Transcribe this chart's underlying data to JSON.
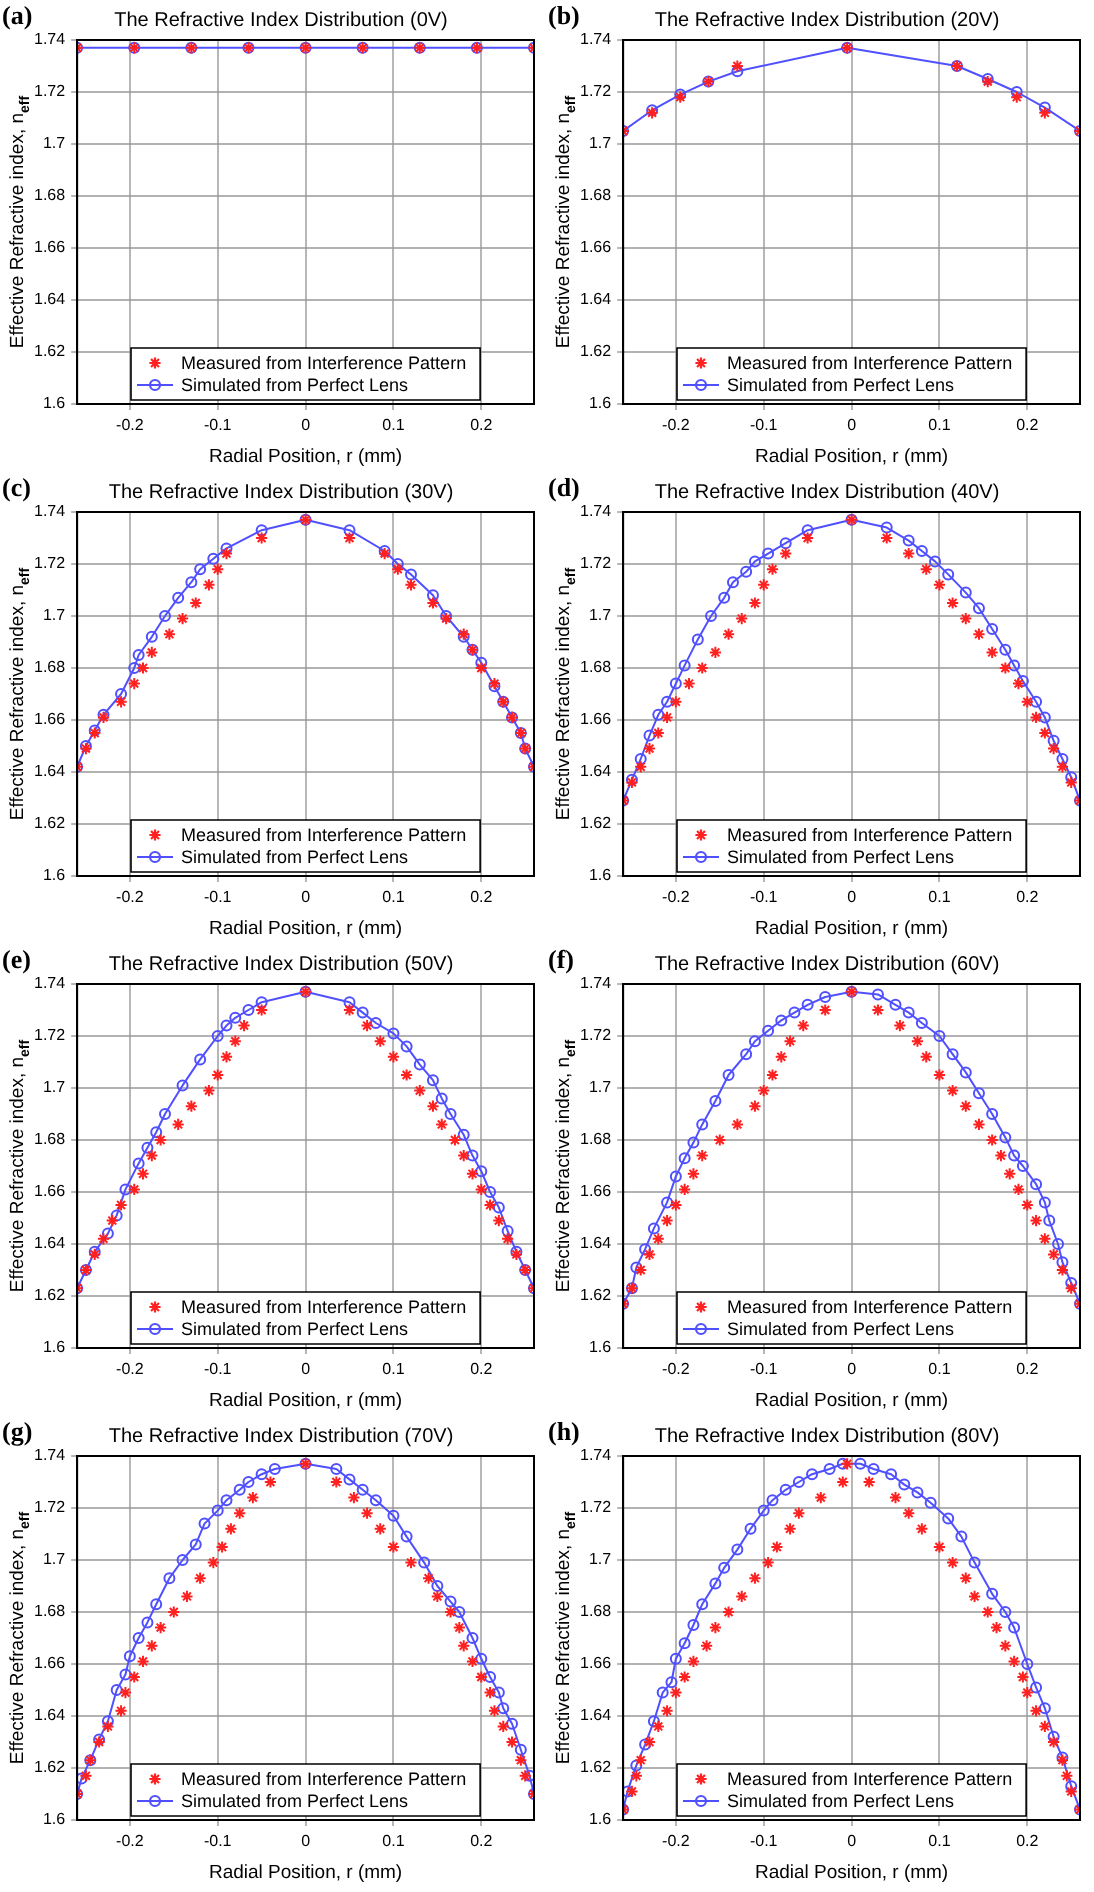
{
  "chart_data": [
    {
      "type": "line",
      "title": "The Refractive Index Distribution (0V)",
      "xlabel": "Radial Position, r (mm)",
      "ylabel": "Effective Refractive index, n$_{eff}$",
      "annotations": [
        "(a)"
      ],
      "xlim": [
        -0.26,
        0.26
      ],
      "xticks": [
        -0.2,
        -0.1,
        0,
        0.1,
        0.2
      ],
      "ylim": [
        1.6,
        1.74
      ],
      "yticks": [
        1.6,
        1.62,
        1.64,
        1.66,
        1.68,
        1.7,
        1.72,
        1.74
      ],
      "grid": true,
      "legend": "bottom",
      "series": [
        {
          "name": "Measured from Interference Pattern",
          "color": "#ff2020",
          "type": "scatter",
          "marker": "cross",
          "x": [
            -0.26,
            -0.195,
            -0.13,
            -0.065,
            0,
            0.065,
            0.13,
            0.195,
            0.26
          ],
          "values": [
            1.737,
            1.737,
            1.737,
            1.737,
            1.737,
            1.737,
            1.737,
            1.737,
            1.737
          ]
        },
        {
          "name": "Simulated from Perfect Lens",
          "color": "#5050ff",
          "type": "line",
          "marker": "circle",
          "line_style": "solid",
          "x": [
            -0.26,
            -0.195,
            -0.13,
            -0.065,
            0,
            0.065,
            0.13,
            0.195,
            0.26
          ],
          "values": [
            1.737,
            1.737,
            1.737,
            1.737,
            1.737,
            1.737,
            1.737,
            1.737,
            1.737
          ]
        }
      ]
    },
    {
      "type": "line",
      "title": "The Refractive Index Distribution (20V)",
      "xlabel": "Radial Position, r (mm)",
      "ylabel": "Effective Refractive index, n$_{eff}$",
      "annotations": [
        "(b)"
      ],
      "xlim": [
        -0.26,
        0.26
      ],
      "xticks": [
        -0.2,
        -0.1,
        0,
        0.1,
        0.2
      ],
      "ylim": [
        1.6,
        1.74
      ],
      "yticks": [
        1.6,
        1.62,
        1.64,
        1.66,
        1.68,
        1.7,
        1.72,
        1.74
      ],
      "grid": true,
      "legend": "bottom",
      "series": [
        {
          "name": "Measured from Interference Pattern",
          "color": "#ff2020",
          "type": "scatter",
          "marker": "cross",
          "x": [
            -0.26,
            -0.227,
            -0.195,
            -0.163,
            -0.13,
            -0.005,
            0.12,
            0.155,
            0.188,
            0.22,
            0.26
          ],
          "values": [
            1.705,
            1.712,
            1.718,
            1.724,
            1.73,
            1.737,
            1.73,
            1.724,
            1.718,
            1.712,
            1.705
          ]
        },
        {
          "name": "Simulated from Perfect Lens",
          "color": "#5050ff",
          "type": "line",
          "marker": "circle",
          "line_style": "solid",
          "x": [
            -0.26,
            -0.227,
            -0.195,
            -0.163,
            -0.13,
            -0.005,
            0.12,
            0.155,
            0.188,
            0.22,
            0.26
          ],
          "values": [
            1.705,
            1.713,
            1.719,
            1.724,
            1.728,
            1.737,
            1.73,
            1.725,
            1.72,
            1.714,
            1.705
          ]
        }
      ]
    },
    {
      "type": "line",
      "title": "The Refractive Index Distribution (30V)",
      "xlabel": "Radial Position, r (mm)",
      "ylabel": "Effective Refractive index, n$_{eff}$",
      "annotations": [
        "(c)"
      ],
      "xlim": [
        -0.26,
        0.26
      ],
      "xticks": [
        -0.2,
        -0.1,
        0,
        0.1,
        0.2
      ],
      "ylim": [
        1.6,
        1.74
      ],
      "yticks": [
        1.6,
        1.62,
        1.64,
        1.66,
        1.68,
        1.7,
        1.72,
        1.74
      ],
      "grid": true,
      "legend": "bottom",
      "series": [
        {
          "name": "Measured from Interference Pattern",
          "color": "#ff2020",
          "type": "scatter",
          "marker": "cross",
          "x": [
            -0.26,
            -0.25,
            -0.24,
            -0.23,
            -0.21,
            -0.195,
            -0.185,
            -0.175,
            -0.155,
            -0.14,
            -0.125,
            -0.11,
            -0.1,
            -0.09,
            -0.05,
            0,
            0.05,
            0.09,
            0.105,
            0.12,
            0.145,
            0.16,
            0.18,
            0.19,
            0.2,
            0.215,
            0.225,
            0.235,
            0.245,
            0.25,
            0.26
          ],
          "values": [
            1.642,
            1.649,
            1.655,
            1.661,
            1.667,
            1.674,
            1.68,
            1.686,
            1.693,
            1.699,
            1.705,
            1.712,
            1.718,
            1.724,
            1.73,
            1.737,
            1.73,
            1.724,
            1.718,
            1.712,
            1.705,
            1.699,
            1.693,
            1.687,
            1.68,
            1.674,
            1.667,
            1.661,
            1.655,
            1.649,
            1.642
          ]
        },
        {
          "name": "Simulated from Perfect Lens",
          "color": "#5050ff",
          "type": "line",
          "marker": "circle",
          "line_style": "solid",
          "x": [
            -0.26,
            -0.25,
            -0.24,
            -0.23,
            -0.21,
            -0.195,
            -0.19,
            -0.175,
            -0.16,
            -0.145,
            -0.13,
            -0.12,
            -0.105,
            -0.09,
            -0.05,
            0,
            0.05,
            0.09,
            0.105,
            0.12,
            0.145,
            0.16,
            0.18,
            0.19,
            0.2,
            0.215,
            0.225,
            0.235,
            0.245,
            0.25,
            0.26
          ],
          "values": [
            1.642,
            1.65,
            1.656,
            1.662,
            1.67,
            1.68,
            1.685,
            1.692,
            1.7,
            1.707,
            1.713,
            1.718,
            1.722,
            1.726,
            1.733,
            1.737,
            1.733,
            1.725,
            1.72,
            1.716,
            1.708,
            1.7,
            1.692,
            1.687,
            1.682,
            1.673,
            1.667,
            1.661,
            1.655,
            1.649,
            1.642
          ]
        }
      ]
    },
    {
      "type": "line",
      "title": "The Refractive Index Distribution (40V)",
      "xlabel": "Radial Position, r (mm)",
      "ylabel": "Effective Refractive index, n$_{eff}$",
      "annotations": [
        "(d)"
      ],
      "xlim": [
        -0.26,
        0.26
      ],
      "xticks": [
        -0.2,
        -0.1,
        0,
        0.1,
        0.2
      ],
      "ylim": [
        1.6,
        1.74
      ],
      "yticks": [
        1.6,
        1.62,
        1.64,
        1.66,
        1.68,
        1.7,
        1.72,
        1.74
      ],
      "grid": true,
      "legend": "bottom",
      "series": [
        {
          "name": "Measured from Interference Pattern",
          "color": "#ff2020",
          "type": "scatter",
          "marker": "cross",
          "x": [
            -0.26,
            -0.25,
            -0.24,
            -0.23,
            -0.22,
            -0.21,
            -0.2,
            -0.185,
            -0.17,
            -0.155,
            -0.14,
            -0.125,
            -0.11,
            -0.1,
            -0.09,
            -0.075,
            -0.05,
            0,
            0.04,
            0.065,
            0.085,
            0.1,
            0.115,
            0.13,
            0.145,
            0.16,
            0.175,
            0.19,
            0.2,
            0.21,
            0.22,
            0.23,
            0.24,
            0.25,
            0.26
          ],
          "values": [
            1.629,
            1.636,
            1.642,
            1.649,
            1.655,
            1.661,
            1.667,
            1.674,
            1.68,
            1.686,
            1.693,
            1.699,
            1.705,
            1.712,
            1.718,
            1.724,
            1.73,
            1.737,
            1.73,
            1.724,
            1.718,
            1.712,
            1.705,
            1.699,
            1.693,
            1.686,
            1.68,
            1.674,
            1.667,
            1.661,
            1.655,
            1.649,
            1.642,
            1.636,
            1.629
          ]
        },
        {
          "name": "Simulated from Perfect Lens",
          "color": "#5050ff",
          "type": "line",
          "marker": "circle",
          "line_style": "solid",
          "x": [
            -0.26,
            -0.25,
            -0.24,
            -0.23,
            -0.22,
            -0.21,
            -0.2,
            -0.19,
            -0.175,
            -0.16,
            -0.145,
            -0.135,
            -0.12,
            -0.11,
            -0.095,
            -0.075,
            -0.05,
            0,
            0.04,
            0.065,
            0.08,
            0.095,
            0.11,
            0.13,
            0.145,
            0.16,
            0.175,
            0.185,
            0.195,
            0.21,
            0.22,
            0.23,
            0.24,
            0.25,
            0.26
          ],
          "values": [
            1.629,
            1.637,
            1.645,
            1.654,
            1.662,
            1.667,
            1.674,
            1.681,
            1.691,
            1.7,
            1.707,
            1.713,
            1.717,
            1.721,
            1.724,
            1.728,
            1.733,
            1.737,
            1.734,
            1.729,
            1.725,
            1.721,
            1.716,
            1.709,
            1.703,
            1.695,
            1.687,
            1.681,
            1.675,
            1.667,
            1.661,
            1.652,
            1.645,
            1.638,
            1.629
          ]
        }
      ]
    },
    {
      "type": "line",
      "title": "The Refractive Index Distribution (50V)",
      "xlabel": "Radial Position, r (mm)",
      "ylabel": "Effective Refractive index, n$_{eff}$",
      "annotations": [
        "(e)"
      ],
      "xlim": [
        -0.26,
        0.26
      ],
      "xticks": [
        -0.2,
        -0.1,
        0,
        0.1,
        0.2
      ],
      "ylim": [
        1.6,
        1.74
      ],
      "yticks": [
        1.6,
        1.62,
        1.64,
        1.66,
        1.68,
        1.7,
        1.72,
        1.74
      ],
      "grid": true,
      "legend": "bottom",
      "series": [
        {
          "name": "Measured from Interference Pattern",
          "color": "#ff2020",
          "type": "scatter",
          "marker": "cross",
          "x": [
            -0.26,
            -0.25,
            -0.24,
            -0.23,
            -0.22,
            -0.21,
            -0.195,
            -0.185,
            -0.175,
            -0.165,
            -0.145,
            -0.13,
            -0.11,
            -0.1,
            -0.09,
            -0.08,
            -0.07,
            -0.05,
            0,
            0.05,
            0.07,
            0.085,
            0.1,
            0.115,
            0.13,
            0.145,
            0.155,
            0.17,
            0.18,
            0.19,
            0.2,
            0.21,
            0.22,
            0.23,
            0.24,
            0.25,
            0.26
          ],
          "values": [
            1.623,
            1.63,
            1.636,
            1.642,
            1.649,
            1.655,
            1.661,
            1.667,
            1.674,
            1.68,
            1.686,
            1.693,
            1.699,
            1.705,
            1.712,
            1.718,
            1.724,
            1.73,
            1.737,
            1.73,
            1.724,
            1.718,
            1.712,
            1.705,
            1.699,
            1.693,
            1.686,
            1.68,
            1.674,
            1.667,
            1.661,
            1.655,
            1.649,
            1.642,
            1.636,
            1.63,
            1.623
          ]
        },
        {
          "name": "Simulated from Perfect Lens",
          "color": "#5050ff",
          "type": "line",
          "marker": "circle",
          "line_style": "solid",
          "x": [
            -0.26,
            -0.25,
            -0.24,
            -0.225,
            -0.215,
            -0.205,
            -0.19,
            -0.18,
            -0.17,
            -0.16,
            -0.14,
            -0.12,
            -0.1,
            -0.09,
            -0.08,
            -0.065,
            -0.05,
            0,
            0.05,
            0.065,
            0.08,
            0.1,
            0.115,
            0.13,
            0.145,
            0.155,
            0.165,
            0.18,
            0.19,
            0.2,
            0.21,
            0.22,
            0.23,
            0.24,
            0.25,
            0.26
          ],
          "values": [
            1.623,
            1.63,
            1.637,
            1.644,
            1.651,
            1.661,
            1.671,
            1.677,
            1.683,
            1.69,
            1.701,
            1.711,
            1.72,
            1.724,
            1.727,
            1.73,
            1.733,
            1.737,
            1.733,
            1.729,
            1.725,
            1.721,
            1.716,
            1.709,
            1.703,
            1.696,
            1.69,
            1.682,
            1.674,
            1.668,
            1.66,
            1.654,
            1.645,
            1.637,
            1.63,
            1.623
          ]
        }
      ]
    },
    {
      "type": "line",
      "title": "The Refractive Index Distribution (60V)",
      "xlabel": "Radial Position, r (mm)",
      "ylabel": "Effective Refractive index, n$_{eff}$",
      "annotations": [
        "(f)"
      ],
      "xlim": [
        -0.26,
        0.26
      ],
      "xticks": [
        -0.2,
        -0.1,
        0,
        0.1,
        0.2
      ],
      "ylim": [
        1.6,
        1.74
      ],
      "yticks": [
        1.6,
        1.62,
        1.64,
        1.66,
        1.68,
        1.7,
        1.72,
        1.74
      ],
      "grid": true,
      "legend": "bottom",
      "series": [
        {
          "name": "Measured from Interference Pattern",
          "color": "#ff2020",
          "type": "scatter",
          "marker": "cross",
          "x": [
            -0.26,
            -0.25,
            -0.24,
            -0.23,
            -0.22,
            -0.21,
            -0.2,
            -0.19,
            -0.18,
            -0.17,
            -0.15,
            -0.13,
            -0.11,
            -0.1,
            -0.09,
            -0.08,
            -0.07,
            -0.055,
            -0.03,
            0,
            0.03,
            0.055,
            0.075,
            0.085,
            0.1,
            0.115,
            0.13,
            0.145,
            0.16,
            0.17,
            0.18,
            0.19,
            0.2,
            0.21,
            0.22,
            0.23,
            0.24,
            0.25,
            0.26
          ],
          "values": [
            1.617,
            1.623,
            1.63,
            1.636,
            1.642,
            1.649,
            1.655,
            1.661,
            1.667,
            1.674,
            1.68,
            1.686,
            1.693,
            1.699,
            1.705,
            1.712,
            1.718,
            1.724,
            1.73,
            1.737,
            1.73,
            1.724,
            1.718,
            1.712,
            1.705,
            1.699,
            1.693,
            1.686,
            1.68,
            1.674,
            1.667,
            1.661,
            1.655,
            1.649,
            1.642,
            1.636,
            1.63,
            1.623,
            1.617
          ]
        },
        {
          "name": "Simulated from Perfect Lens",
          "color": "#5050ff",
          "type": "line",
          "marker": "circle",
          "line_style": "solid",
          "x": [
            -0.26,
            -0.25,
            -0.245,
            -0.235,
            -0.225,
            -0.21,
            -0.2,
            -0.19,
            -0.18,
            -0.17,
            -0.155,
            -0.14,
            -0.12,
            -0.11,
            -0.095,
            -0.08,
            -0.065,
            -0.05,
            -0.03,
            0,
            0.03,
            0.05,
            0.065,
            0.08,
            0.1,
            0.115,
            0.13,
            0.145,
            0.16,
            0.175,
            0.185,
            0.195,
            0.21,
            0.22,
            0.225,
            0.235,
            0.24,
            0.25,
            0.26
          ],
          "values": [
            1.617,
            1.623,
            1.631,
            1.638,
            1.646,
            1.656,
            1.666,
            1.673,
            1.679,
            1.686,
            1.695,
            1.705,
            1.713,
            1.718,
            1.722,
            1.726,
            1.729,
            1.732,
            1.735,
            1.737,
            1.736,
            1.732,
            1.729,
            1.725,
            1.72,
            1.713,
            1.706,
            1.698,
            1.69,
            1.681,
            1.674,
            1.67,
            1.663,
            1.656,
            1.649,
            1.64,
            1.633,
            1.625,
            1.617
          ]
        }
      ]
    },
    {
      "type": "line",
      "title": "The Refractive Index Distribution (70V)",
      "xlabel": "Radial Position, r (mm)",
      "ylabel": "Effective Refractive index, n$_{eff}$",
      "annotations": [
        "(g)"
      ],
      "xlim": [
        -0.26,
        0.26
      ],
      "xticks": [
        -0.2,
        -0.1,
        0,
        0.1,
        0.2
      ],
      "ylim": [
        1.6,
        1.74
      ],
      "yticks": [
        1.6,
        1.62,
        1.64,
        1.66,
        1.68,
        1.7,
        1.72,
        1.74
      ],
      "grid": true,
      "legend": "bottom",
      "series": [
        {
          "name": "Measured from Interference Pattern",
          "color": "#ff2020",
          "type": "scatter",
          "marker": "cross",
          "x": [
            -0.26,
            -0.25,
            -0.245,
            -0.235,
            -0.225,
            -0.21,
            -0.205,
            -0.195,
            -0.185,
            -0.175,
            -0.165,
            -0.15,
            -0.135,
            -0.12,
            -0.105,
            -0.095,
            -0.085,
            -0.075,
            -0.06,
            -0.04,
            0,
            0.035,
            0.055,
            0.07,
            0.085,
            0.1,
            0.12,
            0.14,
            0.15,
            0.165,
            0.175,
            0.18,
            0.19,
            0.2,
            0.21,
            0.215,
            0.225,
            0.235,
            0.245,
            0.25,
            0.26
          ],
          "values": [
            1.61,
            1.617,
            1.623,
            1.63,
            1.636,
            1.642,
            1.649,
            1.655,
            1.661,
            1.667,
            1.674,
            1.68,
            1.686,
            1.693,
            1.699,
            1.705,
            1.712,
            1.718,
            1.724,
            1.73,
            1.737,
            1.73,
            1.724,
            1.718,
            1.712,
            1.705,
            1.699,
            1.693,
            1.686,
            1.68,
            1.674,
            1.667,
            1.661,
            1.655,
            1.649,
            1.642,
            1.636,
            1.63,
            1.623,
            1.617,
            1.61
          ]
        },
        {
          "name": "Simulated from Perfect Lens",
          "color": "#5050ff",
          "type": "line",
          "marker": "circle",
          "line_style": "solid",
          "x": [
            -0.26,
            -0.255,
            -0.245,
            -0.235,
            -0.225,
            -0.215,
            -0.205,
            -0.2,
            -0.19,
            -0.18,
            -0.17,
            -0.155,
            -0.14,
            -0.125,
            -0.115,
            -0.1,
            -0.09,
            -0.075,
            -0.065,
            -0.05,
            -0.035,
            0,
            0.035,
            0.05,
            0.065,
            0.08,
            0.1,
            0.115,
            0.135,
            0.15,
            0.165,
            0.175,
            0.19,
            0.2,
            0.21,
            0.22,
            0.225,
            0.235,
            0.245,
            0.255,
            0.26
          ],
          "values": [
            1.61,
            1.616,
            1.623,
            1.631,
            1.638,
            1.65,
            1.656,
            1.663,
            1.67,
            1.676,
            1.683,
            1.693,
            1.7,
            1.706,
            1.714,
            1.719,
            1.723,
            1.727,
            1.73,
            1.733,
            1.735,
            1.737,
            1.735,
            1.731,
            1.727,
            1.723,
            1.717,
            1.709,
            1.699,
            1.69,
            1.684,
            1.68,
            1.67,
            1.662,
            1.655,
            1.649,
            1.643,
            1.637,
            1.627,
            1.617,
            1.61
          ]
        }
      ]
    },
    {
      "type": "line",
      "title": "The Refractive Index Distribution (80V)",
      "xlabel": "Radial Position, r (mm)",
      "ylabel": "Effective Refractive index, n$_{eff}$",
      "annotations": [
        "(h)"
      ],
      "xlim": [
        -0.26,
        0.26
      ],
      "xticks": [
        -0.2,
        -0.1,
        0,
        0.1,
        0.2
      ],
      "ylim": [
        1.6,
        1.74
      ],
      "yticks": [
        1.6,
        1.62,
        1.64,
        1.66,
        1.68,
        1.7,
        1.72,
        1.74
      ],
      "grid": true,
      "legend": "bottom",
      "series": [
        {
          "name": "Measured from Interference Pattern",
          "color": "#ff2020",
          "type": "scatter",
          "marker": "cross",
          "x": [
            -0.26,
            -0.25,
            -0.245,
            -0.24,
            -0.23,
            -0.22,
            -0.21,
            -0.2,
            -0.19,
            -0.18,
            -0.165,
            -0.155,
            -0.14,
            -0.125,
            -0.11,
            -0.095,
            -0.085,
            -0.07,
            -0.06,
            -0.035,
            -0.01,
            -0.005,
            0.02,
            0.05,
            0.065,
            0.08,
            0.1,
            0.115,
            0.13,
            0.14,
            0.155,
            0.165,
            0.175,
            0.185,
            0.195,
            0.2,
            0.21,
            0.22,
            0.23,
            0.24,
            0.245,
            0.25,
            0.26
          ],
          "values": [
            1.604,
            1.611,
            1.617,
            1.623,
            1.63,
            1.636,
            1.642,
            1.649,
            1.655,
            1.661,
            1.667,
            1.674,
            1.68,
            1.686,
            1.693,
            1.699,
            1.705,
            1.712,
            1.718,
            1.724,
            1.73,
            1.737,
            1.73,
            1.724,
            1.718,
            1.712,
            1.705,
            1.699,
            1.693,
            1.686,
            1.68,
            1.674,
            1.667,
            1.661,
            1.655,
            1.649,
            1.642,
            1.636,
            1.63,
            1.623,
            1.617,
            1.611,
            1.604
          ]
        },
        {
          "name": "Simulated from Perfect Lens",
          "color": "#5050ff",
          "type": "line",
          "marker": "circle",
          "line_style": "solid",
          "x": [
            -0.26,
            -0.255,
            -0.245,
            -0.235,
            -0.225,
            -0.215,
            -0.205,
            -0.2,
            -0.19,
            -0.18,
            -0.17,
            -0.155,
            -0.145,
            -0.13,
            -0.115,
            -0.1,
            -0.09,
            -0.075,
            -0.06,
            -0.045,
            -0.025,
            -0.01,
            0.01,
            0.025,
            0.045,
            0.06,
            0.075,
            0.09,
            0.11,
            0.125,
            0.14,
            0.16,
            0.175,
            0.185,
            0.2,
            0.21,
            0.22,
            0.23,
            0.24,
            0.25,
            0.26
          ],
          "values": [
            1.604,
            1.611,
            1.621,
            1.629,
            1.638,
            1.649,
            1.653,
            1.662,
            1.668,
            1.675,
            1.683,
            1.691,
            1.697,
            1.704,
            1.712,
            1.719,
            1.723,
            1.727,
            1.73,
            1.733,
            1.735,
            1.737,
            1.737,
            1.735,
            1.733,
            1.729,
            1.726,
            1.722,
            1.716,
            1.709,
            1.699,
            1.687,
            1.68,
            1.674,
            1.66,
            1.651,
            1.643,
            1.632,
            1.624,
            1.613,
            1.604
          ]
        }
      ]
    }
  ]
}
